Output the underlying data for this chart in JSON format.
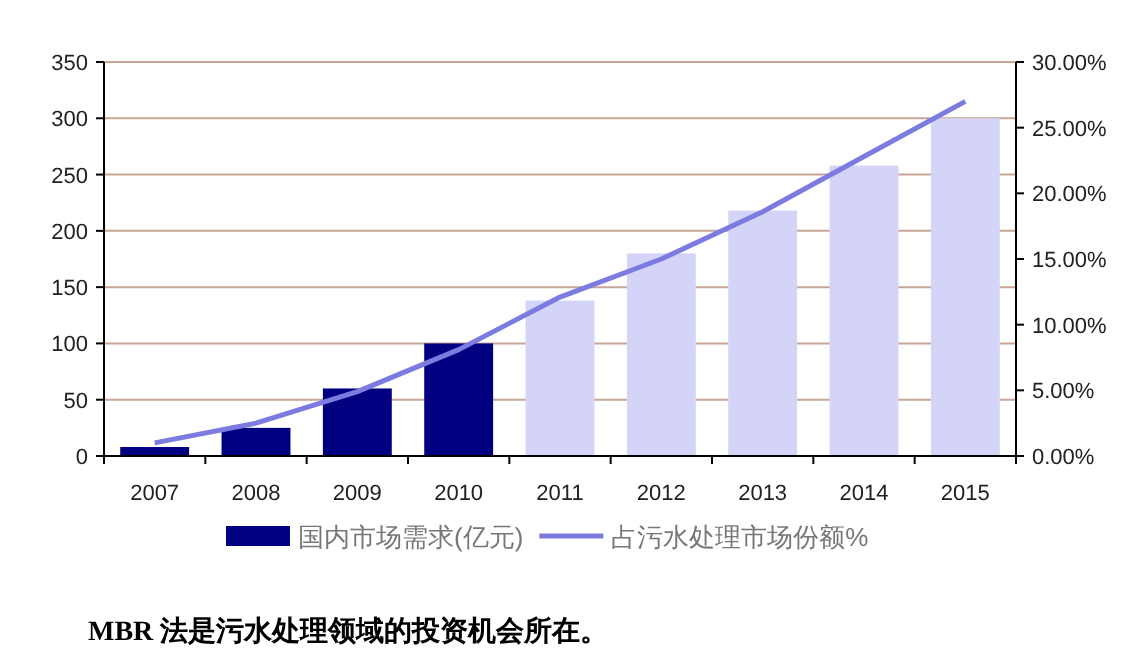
{
  "chart_data": {
    "type": "bar",
    "categories": [
      "2007",
      "2008",
      "2009",
      "2010",
      "2011",
      "2012",
      "2013",
      "2014",
      "2015"
    ],
    "series": [
      {
        "name": "国内市场需求(亿元)",
        "color": "#000080",
        "colors": [
          "#000080",
          "#000080",
          "#000080",
          "#000080",
          "#d4d4f8",
          "#d4d4f8",
          "#d4d4f8",
          "#d4d4f8",
          "#d4d4f8"
        ],
        "values": [
          8,
          25,
          60,
          100,
          138,
          180,
          218,
          258,
          300
        ]
      },
      {
        "name": "占污水处理市场份额%",
        "type": "line",
        "axis": "y2",
        "color": "#7b7be0",
        "values": [
          1.0,
          2.5,
          4.9,
          8.1,
          12.1,
          15.0,
          18.6,
          22.8,
          27.0
        ]
      }
    ],
    "ylim": [
      0,
      350
    ],
    "yticks": [
      0,
      50,
      100,
      150,
      200,
      250,
      300,
      350
    ],
    "y2lim": [
      0,
      30
    ],
    "y2ticks": [
      {
        "value": 0,
        "label": "0.00%"
      },
      {
        "value": 5,
        "label": "5.00%"
      },
      {
        "value": 10,
        "label": "10.00%"
      },
      {
        "value": 15,
        "label": "15.00%"
      },
      {
        "value": 20,
        "label": "20.00%"
      },
      {
        "value": 25,
        "label": "25.00%"
      },
      {
        "value": 30,
        "label": "30.00%"
      }
    ],
    "grid": "y",
    "legend": "bottom",
    "marker": "none",
    "annotations": [
      "MBR 法是污水处理领域的投资机会所在。"
    ]
  }
}
